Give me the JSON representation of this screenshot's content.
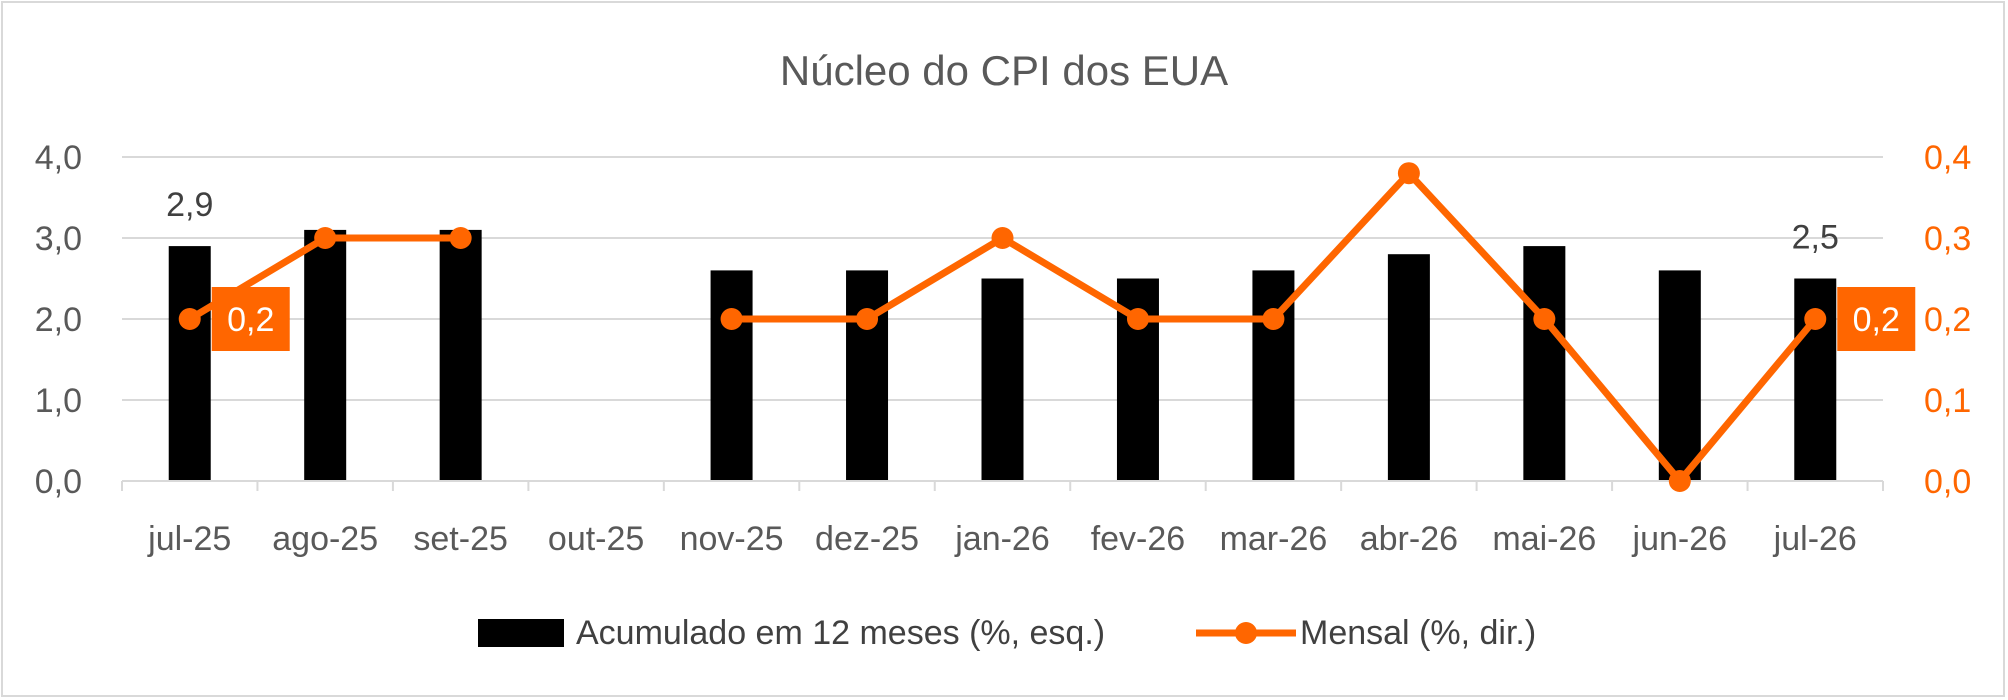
{
  "chart_data": {
    "type": "bar+line",
    "title": "Núcleo do CPI dos EUA",
    "categories": [
      "jul-25",
      "ago-25",
      "set-25",
      "out-25",
      "nov-25",
      "dez-25",
      "jan-26",
      "fev-26",
      "mar-26",
      "abr-26",
      "mai-26",
      "jun-26",
      "jul-26"
    ],
    "series": [
      {
        "name": "Acumulado em 12 meses (%, esq.)",
        "type": "bar",
        "axis": "left",
        "color": "#000000",
        "values": [
          2.9,
          3.1,
          3.1,
          null,
          2.6,
          2.6,
          2.5,
          2.5,
          2.6,
          2.8,
          2.9,
          2.6,
          2.5
        ]
      },
      {
        "name": "Mensal (%, dir.)",
        "type": "line",
        "axis": "right",
        "color": "#FF6600",
        "values": [
          0.2,
          0.3,
          0.3,
          null,
          0.2,
          0.2,
          0.3,
          0.2,
          0.2,
          0.38,
          0.2,
          0.0,
          0.2
        ]
      }
    ],
    "y_left": {
      "ylim": [
        0,
        4
      ],
      "ticks": [
        "0,0",
        "1,0",
        "2,0",
        "3,0",
        "4,0"
      ]
    },
    "y_right": {
      "ylim": [
        0,
        0.4
      ],
      "ticks": [
        "0,0",
        "0,1",
        "0,2",
        "0,3",
        "0,4"
      ]
    },
    "data_labels": [
      {
        "series": 0,
        "index": 0,
        "text": "2,9"
      },
      {
        "series": 0,
        "index": 12,
        "text": "2,5"
      },
      {
        "series": 1,
        "index": 0,
        "text": "0,2"
      },
      {
        "series": 1,
        "index": 12,
        "text": "0,2"
      }
    ],
    "grid": true,
    "legend_position": "bottom"
  }
}
